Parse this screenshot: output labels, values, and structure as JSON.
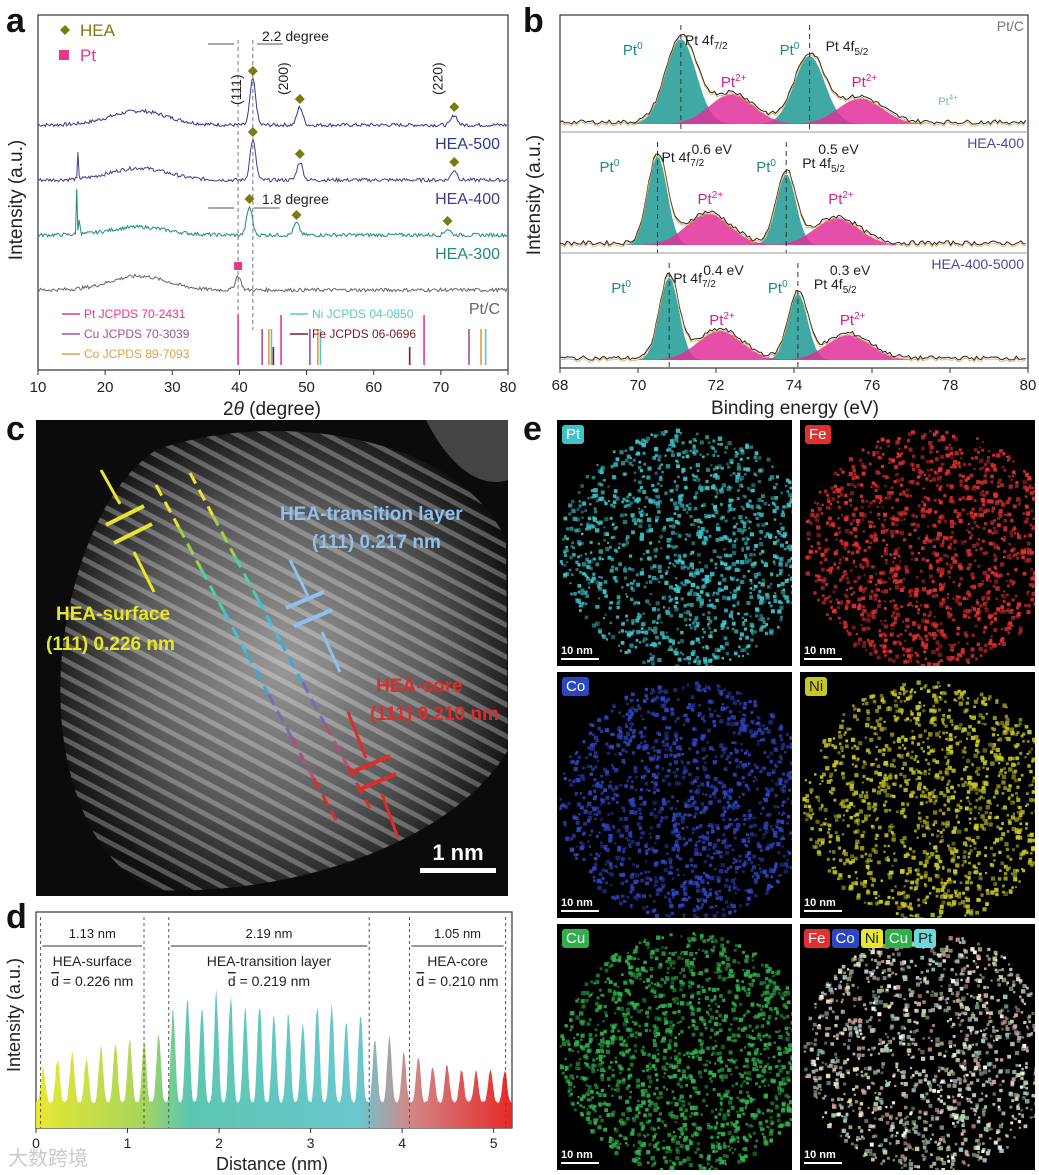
{
  "panel_labels": {
    "a": "a",
    "b": "b",
    "c": "c",
    "d": "d",
    "e": "e"
  },
  "chart_data": [
    {
      "id": "a",
      "type": "line",
      "title": "",
      "xlabel_prefix": "2",
      "xlabel_theta": "θ",
      "xlabel_suffix": " (degree)",
      "ylabel": "Intensity (a.u.)",
      "xlim": [
        10,
        80
      ],
      "xticks": [
        10,
        20,
        30,
        40,
        50,
        60,
        70,
        80
      ],
      "legend": [
        {
          "label": "HEA",
          "color": "#7a7a10",
          "marker": "diamond"
        },
        {
          "label": "Pt",
          "color": "#e8368a",
          "marker": "square"
        }
      ],
      "series": [
        {
          "name": "HEA-500",
          "color": "#2b3a8f",
          "offset": 4,
          "peaks": [
            [
              42.0,
              1.15
            ],
            [
              49.0,
              0.45
            ],
            [
              72.0,
              0.25
            ]
          ],
          "hump": [
            25,
            0.35
          ]
        },
        {
          "name": "HEA-400",
          "color": "#4a3a8a",
          "offset": 3,
          "peaks": [
            [
              42.0,
              1.0
            ],
            [
              49.0,
              0.45
            ],
            [
              72.0,
              0.25
            ]
          ],
          "hump": [
            25,
            0.3
          ],
          "spikes": [
            [
              16.0,
              1.1
            ]
          ]
        },
        {
          "name": "HEA-300",
          "color": "#1f8a80",
          "offset": 2,
          "peaks": [
            [
              41.5,
              0.7
            ],
            [
              48.5,
              0.3
            ],
            [
              71.0,
              0.15
            ]
          ],
          "hump": [
            25,
            0.2
          ],
          "spikes": [
            [
              15.8,
              1.5
            ],
            [
              16.2,
              1.0
            ]
          ]
        },
        {
          "name": "Pt/C",
          "color": "#666666",
          "offset": 1,
          "peaks": [
            [
              39.8,
              0.35
            ]
          ],
          "hump": [
            25,
            0.35
          ]
        }
      ],
      "peak_labels": [
        {
          "text": "(111)",
          "x": 42.0
        },
        {
          "text": "(200)",
          "x": 49.0
        },
        {
          "text": "(220)",
          "x": 72.0
        }
      ],
      "annotations": [
        "2.2 degree",
        "1.8 degree"
      ],
      "references": [
        {
          "label": "Pt JCPDS 70-2431",
          "color": "#e8368a",
          "positions": [
            39.8,
            46.2,
            67.5,
            81.3
          ]
        },
        {
          "label": "Cu JCPDS 70-3039",
          "color": "#a04fa0",
          "positions": [
            43.3,
            50.4,
            74.1
          ]
        },
        {
          "label": "Co JCPDS 89-7093",
          "color": "#e0a040",
          "positions": [
            44.2,
            51.5,
            75.8
          ]
        },
        {
          "label": "Ni JCPDS 04-0850",
          "color": "#5bc8c0",
          "positions": [
            44.5,
            51.8,
            76.4
          ]
        },
        {
          "label": "Fe JCPDS 06-0696",
          "color": "#7a1a20",
          "positions": [
            44.7,
            65.0
          ]
        }
      ]
    },
    {
      "id": "b",
      "type": "line",
      "xlabel": "Binding energy (eV)",
      "ylabel": "Intensity (a.u.)",
      "xlim": [
        68,
        80
      ],
      "xticks": [
        68,
        70,
        72,
        74,
        76,
        78,
        80
      ],
      "series": [
        {
          "name": "Pt/C",
          "pt0_72": 71.1,
          "pt0_52": 74.4,
          "shift_label": ""
        },
        {
          "name": "HEA-400",
          "pt0_72": 70.5,
          "pt0_52": 73.8,
          "shift_label_72": "0.6 eV",
          "shift_label_52": "0.5 eV"
        },
        {
          "name": "HEA-400-5000",
          "pt0_72": 70.8,
          "pt0_52": 74.1,
          "shift_label_72": "0.4 eV",
          "shift_label_52": "0.3 eV"
        }
      ],
      "labels": {
        "pt0": "Pt",
        "pt0_sup": "0",
        "pt2": "Pt",
        "pt2_sup": "2+",
        "pt4": "Pt",
        "pt4_sup": "4+",
        "f72": "Pt 4f",
        "f72_sub": "7/2",
        "f52": "Pt 4f",
        "f52_sub": "5/2"
      }
    },
    {
      "id": "d",
      "type": "area",
      "xlabel": "Distance (nm)",
      "ylabel": "Intensity (a.u.)",
      "xlim": [
        0,
        5.2
      ],
      "xticks": [
        0,
        1,
        2,
        3,
        4,
        5
      ],
      "regions": [
        {
          "width": "1.13 nm",
          "name": "HEA-surface",
          "dbar": "d",
          "d": " = 0.226 nm",
          "start": 0.05,
          "end": 1.18
        },
        {
          "width": "2.19 nm",
          "name": "HEA-transition layer",
          "dbar": "d",
          "d": " = 0.219 nm",
          "start": 1.45,
          "end": 3.64
        },
        {
          "width": "1.05 nm",
          "name": "HEA-core",
          "dbar": "d",
          "d": " = 0.210 nm",
          "start": 4.08,
          "end": 5.13
        }
      ],
      "peak_heights": [
        0.28,
        0.35,
        0.42,
        0.35,
        0.46,
        0.48,
        0.52,
        0.5,
        0.56,
        0.78,
        0.88,
        0.82,
        0.92,
        0.86,
        0.8,
        0.82,
        0.75,
        0.74,
        0.68,
        0.8,
        0.82,
        0.7,
        0.75,
        0.55,
        0.55,
        0.42,
        0.38,
        0.3,
        0.32,
        0.27,
        0.25,
        0.28,
        0.27
      ]
    }
  ],
  "panel_c": {
    "surface_label": "HEA-surface",
    "surface_value": "(111) 0.226 nm",
    "transition_label": "HEA-transition layer",
    "transition_value": "(111) 0.217 nm",
    "core_label": "HEA-core",
    "core_value": "(111) 0.210 nm",
    "scale_label": "1 nm"
  },
  "panel_e": {
    "maps": [
      {
        "element": "Pt",
        "color": "#3ec3c8",
        "scale": "10 nm"
      },
      {
        "element": "Fe",
        "color": "#e03030",
        "scale": "10 nm"
      },
      {
        "element": "Co",
        "color": "#2d45c0",
        "scale": "10 nm"
      },
      {
        "element": "Ni",
        "color": "#c8c825",
        "scale": "10 nm"
      },
      {
        "element": "Cu",
        "color": "#2fb04a",
        "scale": "10 nm"
      },
      {
        "element": "overlay",
        "color": "#cfcfb0",
        "scale": "10 nm"
      }
    ],
    "overlay_tags": [
      "Fe",
      "Co",
      "Ni",
      "Cu",
      "Pt"
    ]
  },
  "watermark": "大数跨境"
}
